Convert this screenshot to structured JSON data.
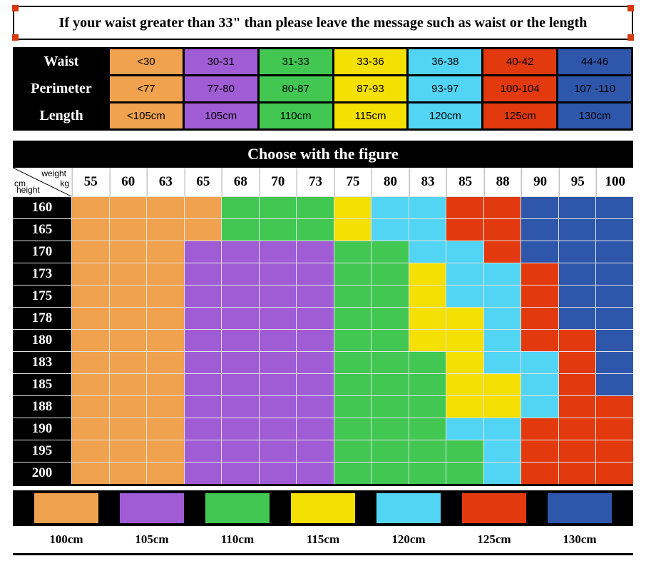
{
  "banner": {
    "text": "If your waist greater than 33\" than please leave the message such as waist or the length"
  },
  "size_table": {
    "colors": [
      "#F0A24F",
      "#A05CD5",
      "#41C752",
      "#F5E003",
      "#52D5F5",
      "#E23A0E",
      "#2E57AC"
    ],
    "rows": [
      {
        "label": "Waist",
        "values": [
          "<30",
          "30-31",
          "31-33",
          "33-36",
          "36-38",
          "40-42",
          "44-46"
        ]
      },
      {
        "label": "Perimeter",
        "values": [
          "<77",
          "77-80",
          "80-87",
          "87-93",
          "93-97",
          "100-104",
          "107 -110"
        ]
      },
      {
        "label": "Length",
        "values": [
          "<105cm",
          "105cm",
          "110cm",
          "115cm",
          "120cm",
          "125cm",
          "130cm"
        ]
      }
    ]
  },
  "grid_corner": {
    "weight": "weight",
    "kg": "kg",
    "cm": "cm",
    "height": "height"
  },
  "palette": {
    "O": "#F0A24F",
    "P": "#A05CD5",
    "G": "#41C752",
    "Y": "#F5E003",
    "C": "#52D5F5",
    "R": "#E23A0E",
    "B": "#2E57AC"
  },
  "chart_data": {
    "type": "heatmap",
    "title": "Choose with the figure",
    "x_label": "weight kg",
    "y_label": "height cm",
    "x_ticks": [
      "55",
      "60",
      "63",
      "65",
      "68",
      "70",
      "73",
      "75",
      "80",
      "83",
      "85",
      "88",
      "90",
      "95",
      "100"
    ],
    "y_ticks": [
      "160",
      "165",
      "170",
      "173",
      "175",
      "178",
      "180",
      "183",
      "185",
      "188",
      "190",
      "195",
      "200"
    ],
    "size_codes": {
      "O": "100cm",
      "P": "105cm",
      "G": "110cm",
      "Y": "115cm",
      "C": "120cm",
      "R": "125cm",
      "B": "130cm"
    },
    "matrix": [
      "OOOOGGGYCCRRBBB",
      "OOOOGGGYCCRRBBB",
      "OOOPPPPGGCCRBBB",
      "OOOPPPPGGYCCRBB",
      "OOOPPPPGGYCCRBB",
      "OOOPPPPGGYYCRBB",
      "OOOPPPPGGYYCRRB",
      "OOOPPPPGGGYCCRB",
      "OOOPPPPGGGYYCRB",
      "OOOPPPPGGGYYCRR",
      "OOOPPPPGGGCCRRR",
      "OOOPPPPGGGGCRRR",
      "OOOPPPPGGGGCRRR"
    ]
  },
  "legend": {
    "items": [
      {
        "code": "O",
        "label": "100cm"
      },
      {
        "code": "P",
        "label": "105cm"
      },
      {
        "code": "G",
        "label": "110cm"
      },
      {
        "code": "Y",
        "label": "115cm"
      },
      {
        "code": "C",
        "label": "120cm"
      },
      {
        "code": "R",
        "label": "125cm"
      },
      {
        "code": "B",
        "label": "130cm"
      }
    ]
  }
}
